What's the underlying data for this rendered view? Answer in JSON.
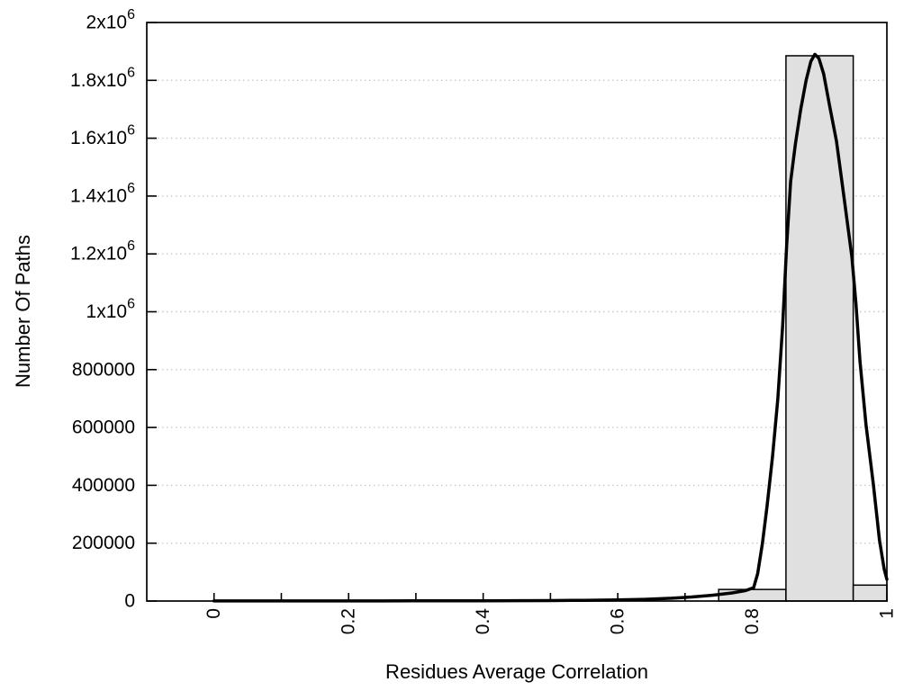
{
  "figure": {
    "background": "#ffffff"
  },
  "chart_data": {
    "type": "bar",
    "subtype": "histogram-with-fit-curve",
    "title": "",
    "xlabel": "Residues Average Correlation",
    "ylabel": "Number Of Paths",
    "xlim": [
      -0.1,
      1.0
    ],
    "ylim": [
      0,
      2000000
    ],
    "grid": "horizontal-dotted",
    "legend": "none",
    "x_ticks": {
      "minor_values": [
        0,
        0.1,
        0.2,
        0.3,
        0.4,
        0.5,
        0.6,
        0.7,
        0.8,
        0.9,
        1.0
      ],
      "labeled": [
        {
          "value": 0,
          "label": "0"
        },
        {
          "value": 0.2,
          "label": "0.2"
        },
        {
          "value": 0.4,
          "label": "0.4"
        },
        {
          "value": 0.6,
          "label": "0.6"
        },
        {
          "value": 0.8,
          "label": "0.8"
        },
        {
          "value": 1,
          "label": "1"
        }
      ],
      "label_rotation_deg": -90
    },
    "y_ticks": [
      {
        "value": 0,
        "label": "0"
      },
      {
        "value": 200000,
        "label": "200000"
      },
      {
        "value": 400000,
        "label": "400000"
      },
      {
        "value": 600000,
        "label": "600000"
      },
      {
        "value": 800000,
        "label": "800000"
      },
      {
        "value": 1000000,
        "label": "1x10^6"
      },
      {
        "value": 1200000,
        "label": "1.2x10^6"
      },
      {
        "value": 1400000,
        "label": "1.4x10^6"
      },
      {
        "value": 1600000,
        "label": "1.6x10^6"
      },
      {
        "value": 1800000,
        "label": "1.8x10^6"
      },
      {
        "value": 2000000,
        "label": "2x10^6"
      }
    ],
    "bars": [
      {
        "x0": 0.75,
        "x1": 0.85,
        "count": 40000
      },
      {
        "x0": 0.85,
        "x1": 0.95,
        "count": 1885000
      },
      {
        "x0": 0.95,
        "x1": 1.0,
        "count": 55000
      }
    ],
    "curve": {
      "name": "fit-curve",
      "peak": {
        "x": 0.893,
        "y": 1890000
      },
      "points": [
        [
          0.0,
          300
        ],
        [
          0.05,
          300
        ],
        [
          0.1,
          300
        ],
        [
          0.15,
          350
        ],
        [
          0.2,
          400
        ],
        [
          0.25,
          450
        ],
        [
          0.3,
          550
        ],
        [
          0.35,
          700
        ],
        [
          0.4,
          900
        ],
        [
          0.45,
          1200
        ],
        [
          0.5,
          1700
        ],
        [
          0.55,
          2500
        ],
        [
          0.6,
          4000
        ],
        [
          0.64,
          6000
        ],
        [
          0.68,
          9500
        ],
        [
          0.71,
          14000
        ],
        [
          0.74,
          20000
        ],
        [
          0.77,
          28000
        ],
        [
          0.79,
          36000
        ],
        [
          0.802,
          46000
        ],
        [
          0.808,
          95000
        ],
        [
          0.815,
          200000
        ],
        [
          0.822,
          330000
        ],
        [
          0.83,
          500000
        ],
        [
          0.838,
          700000
        ],
        [
          0.845,
          950000
        ],
        [
          0.851,
          1230000
        ],
        [
          0.857,
          1450000
        ],
        [
          0.864,
          1580000
        ],
        [
          0.872,
          1700000
        ],
        [
          0.88,
          1800000
        ],
        [
          0.887,
          1866000
        ],
        [
          0.893,
          1890000
        ],
        [
          0.899,
          1876000
        ],
        [
          0.906,
          1822000
        ],
        [
          0.915,
          1710000
        ],
        [
          0.925,
          1590000
        ],
        [
          0.936,
          1400000
        ],
        [
          0.948,
          1190000
        ],
        [
          0.954,
          1030000
        ],
        [
          0.96,
          830000
        ],
        [
          0.969,
          610000
        ],
        [
          0.98,
          400000
        ],
        [
          0.989,
          210000
        ],
        [
          0.996,
          110000
        ],
        [
          1.0,
          75000
        ]
      ]
    },
    "colors": {
      "bar_fill": "#e0e0e0",
      "bar_border": "#000000",
      "curve": "#000000",
      "grid": "#c9c9c9",
      "frame": "#000000",
      "text": "#000000"
    }
  }
}
